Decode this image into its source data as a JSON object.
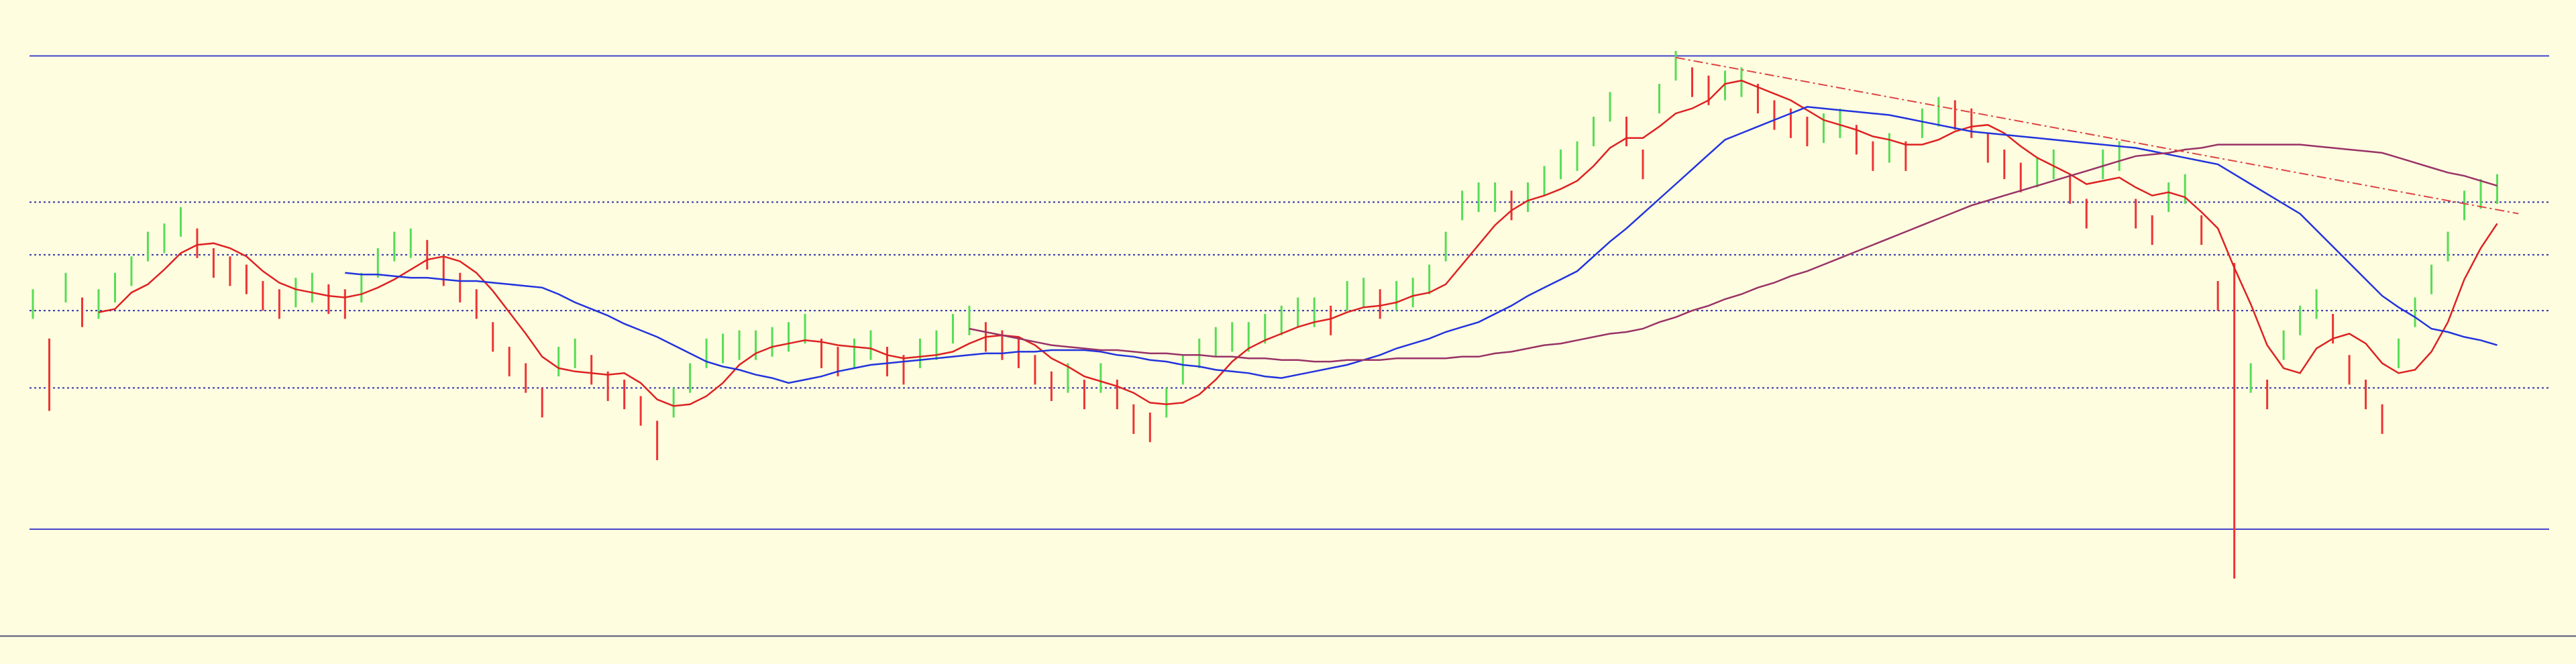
{
  "chart_data": {
    "type": "ohlc",
    "ylim": [
      -4,
      400
    ],
    "background": "#fefde0",
    "up_color": "#55dd55",
    "down_color": "#ee3333",
    "high": [
      224,
      194,
      234,
      219,
      224,
      234,
      244,
      259,
      264,
      274,
      261,
      249,
      244,
      239,
      229,
      224,
      231,
      234,
      227,
      224,
      234,
      249,
      259,
      261,
      254,
      244,
      234,
      224,
      204,
      189,
      179,
      164,
      189,
      194,
      184,
      174,
      169,
      159,
      144,
      164,
      179,
      194,
      197,
      199,
      199,
      201,
      204,
      209,
      194,
      189,
      194,
      199,
      189,
      184,
      194,
      199,
      209,
      214,
      204,
      199,
      194,
      184,
      174,
      179,
      169,
      179,
      169,
      154,
      149,
      164,
      184,
      194,
      201,
      204,
      204,
      209,
      214,
      219,
      219,
      214,
      229,
      231,
      224,
      229,
      231,
      239,
      259,
      284,
      289,
      289,
      284,
      289,
      299,
      309,
      314,
      329,
      344,
      329,
      309,
      349,
      369,
      359,
      354,
      357,
      359,
      349,
      339,
      334,
      329,
      331,
      334,
      324,
      314,
      319,
      314,
      334,
      341,
      339,
      334,
      319,
      309,
      301,
      304,
      309,
      294,
      279,
      309,
      314,
      279,
      269,
      289,
      294,
      269,
      229,
      240,
      179,
      169,
      199,
      214,
      224,
      209,
      184,
      169,
      154,
      194,
      219,
      239,
      259,
      284,
      291,
      294
    ],
    "low": [
      206,
      150,
      216,
      201,
      206,
      216,
      226,
      241,
      246,
      256,
      243,
      231,
      226,
      221,
      211,
      206,
      213,
      216,
      209,
      206,
      216,
      231,
      241,
      243,
      236,
      226,
      216,
      206,
      186,
      171,
      161,
      146,
      171,
      176,
      166,
      156,
      151,
      141,
      120,
      146,
      161,
      176,
      179,
      181,
      181,
      183,
      186,
      191,
      176,
      171,
      176,
      181,
      171,
      166,
      176,
      181,
      191,
      196,
      186,
      181,
      176,
      166,
      156,
      161,
      151,
      161,
      151,
      136,
      131,
      146,
      166,
      176,
      183,
      186,
      186,
      191,
      196,
      201,
      201,
      196,
      211,
      213,
      206,
      211,
      213,
      221,
      241,
      266,
      271,
      271,
      266,
      271,
      281,
      291,
      296,
      311,
      326,
      311,
      291,
      331,
      351,
      341,
      336,
      339,
      341,
      331,
      321,
      316,
      311,
      313,
      316,
      306,
      296,
      301,
      296,
      316,
      323,
      321,
      316,
      301,
      291,
      283,
      286,
      291,
      276,
      261,
      291,
      296,
      261,
      251,
      271,
      276,
      251,
      211,
      48,
      161,
      151,
      181,
      196,
      206,
      191,
      166,
      151,
      136,
      176,
      201,
      221,
      241,
      266,
      273,
      276
    ],
    "lines": [
      {
        "color": "#dd2222",
        "values": [
          null,
          null,
          null,
          null,
          210,
          212,
          222,
          227,
          236,
          246,
          251,
          252,
          249,
          244,
          235,
          228,
          224,
          222,
          220,
          219,
          221,
          225,
          230,
          236,
          242,
          244,
          241,
          234,
          223,
          210,
          197,
          183,
          176,
          174,
          173,
          172,
          173,
          167,
          157,
          153,
          154,
          159,
          167,
          178,
          185,
          189,
          191,
          193,
          192,
          190,
          189,
          188,
          184,
          182,
          183,
          184,
          186,
          191,
          195,
          196,
          195,
          190,
          182,
          177,
          171,
          168,
          165,
          161,
          155,
          154,
          155,
          160,
          169,
          180,
          188,
          193,
          197,
          201,
          204,
          206,
          210,
          213,
          214,
          216,
          220,
          222,
          227,
          239,
          251,
          263,
          272,
          278,
          281,
          285,
          290,
          299,
          310,
          316,
          316,
          323,
          331,
          334,
          339,
          349,
          351,
          347,
          343,
          339,
          333,
          327,
          324,
          321,
          317,
          315,
          312,
          312,
          315,
          320,
          323,
          324,
          319,
          311,
          304,
          299,
          294,
          288,
          290,
          292,
          286,
          281,
          283,
          280,
          271,
          261,
          237,
          215,
          190,
          176,
          173,
          188,
          194,
          197,
          191,
          179,
          173,
          175,
          186,
          204,
          230,
          249,
          264
        ]
      },
      {
        "color": "#2233dd",
        "values": [
          null,
          null,
          null,
          null,
          null,
          null,
          null,
          null,
          null,
          null,
          null,
          null,
          null,
          null,
          null,
          null,
          null,
          null,
          null,
          234,
          233,
          233,
          232,
          231,
          231,
          230,
          229,
          229,
          228,
          227,
          226,
          225,
          221,
          216,
          212,
          208,
          203,
          199,
          195,
          190,
          185,
          180,
          177,
          175,
          172,
          170,
          167,
          169,
          171,
          174,
          176,
          178,
          179,
          180,
          181,
          182,
          183,
          184,
          185,
          185,
          186,
          186,
          187,
          187,
          187,
          186,
          184,
          183,
          181,
          180,
          178,
          177,
          175,
          174,
          173,
          171,
          170,
          172,
          174,
          176,
          178,
          181,
          184,
          188,
          191,
          194,
          198,
          201,
          204,
          209,
          214,
          220,
          225,
          230,
          235,
          244,
          253,
          261,
          270,
          279,
          288,
          297,
          306,
          315,
          319,
          323,
          327,
          331,
          335,
          334,
          333,
          332,
          331,
          330,
          328,
          326,
          324,
          322,
          320,
          319,
          318,
          317,
          316,
          315,
          314,
          313,
          312,
          311,
          310,
          308,
          306,
          304,
          302,
          300,
          294,
          288,
          282,
          276,
          270,
          260,
          250,
          240,
          230,
          220,
          213,
          207,
          200,
          198,
          195,
          193,
          190
        ]
      },
      {
        "color": "#993366",
        "values": [
          null,
          null,
          null,
          null,
          null,
          null,
          null,
          null,
          null,
          null,
          null,
          null,
          null,
          null,
          null,
          null,
          null,
          null,
          null,
          null,
          null,
          null,
          null,
          null,
          null,
          null,
          null,
          null,
          null,
          null,
          null,
          null,
          null,
          null,
          null,
          null,
          null,
          null,
          null,
          null,
          null,
          null,
          null,
          null,
          null,
          null,
          null,
          null,
          null,
          null,
          null,
          null,
          null,
          null,
          null,
          null,
          null,
          200,
          198,
          196,
          194,
          192,
          190,
          189,
          188,
          187,
          187,
          186,
          185,
          185,
          184,
          184,
          183,
          183,
          182,
          182,
          181,
          181,
          180,
          180,
          181,
          181,
          181,
          182,
          182,
          182,
          182,
          183,
          183,
          185,
          186,
          188,
          190,
          191,
          193,
          195,
          197,
          198,
          200,
          204,
          207,
          211,
          214,
          218,
          221,
          225,
          228,
          232,
          235,
          239,
          243,
          247,
          251,
          255,
          259,
          263,
          267,
          271,
          275,
          278,
          281,
          284,
          287,
          290,
          293,
          296,
          299,
          302,
          305,
          306,
          307,
          309,
          310,
          312,
          312,
          312,
          312,
          312,
          312,
          311,
          310,
          309,
          308,
          307,
          304,
          301,
          298,
          295,
          293,
          290,
          287
        ]
      }
    ],
    "hlines": [
      {
        "value": 366,
        "color": "#4444cc",
        "dashed": false
      },
      {
        "value": 277,
        "color": "#3333aa",
        "dashed": true
      },
      {
        "value": 245,
        "color": "#3333aa",
        "dashed": true
      },
      {
        "value": 211,
        "color": "#3333aa",
        "dashed": true
      },
      {
        "value": 164,
        "color": "#3333aa",
        "dashed": true
      },
      {
        "value": 78,
        "color": "#4444cc",
        "dashed": false
      },
      {
        "value": 13,
        "color": "#555577",
        "dashed": false
      }
    ],
    "trendline": {
      "color": "#dd4444",
      "from": [
        100,
        365
      ],
      "to": [
        151.3,
        270
      ]
    }
  }
}
